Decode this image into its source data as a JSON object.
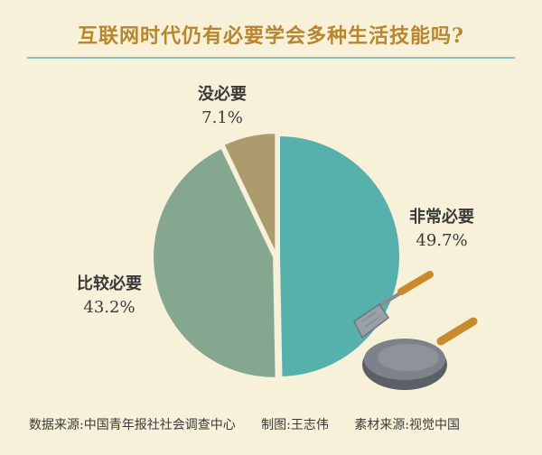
{
  "title": "互联网时代仍有必要学会多种生活技能吗?",
  "footer": {
    "source": "数据来源:中国青年报社社会调查中心",
    "made_by": "制图:王志伟",
    "material": "素材来源:视觉中国"
  },
  "chart_data": {
    "type": "pie",
    "title": "互联网时代仍有必要学会多种生活技能吗?",
    "slices": [
      {
        "label": "非常必要",
        "value": 49.7,
        "value_text": "49.7%",
        "color": "#56b1ad"
      },
      {
        "label": "比较必要",
        "value": 43.2,
        "value_text": "43.2%",
        "color": "#85a78f"
      },
      {
        "label": "没必要",
        "value": 7.1,
        "value_text": "7.1%",
        "color": "#ad9b6d"
      }
    ]
  },
  "illustration": {
    "icons": [
      "spatula-icon",
      "wok-pan-icon"
    ]
  }
}
